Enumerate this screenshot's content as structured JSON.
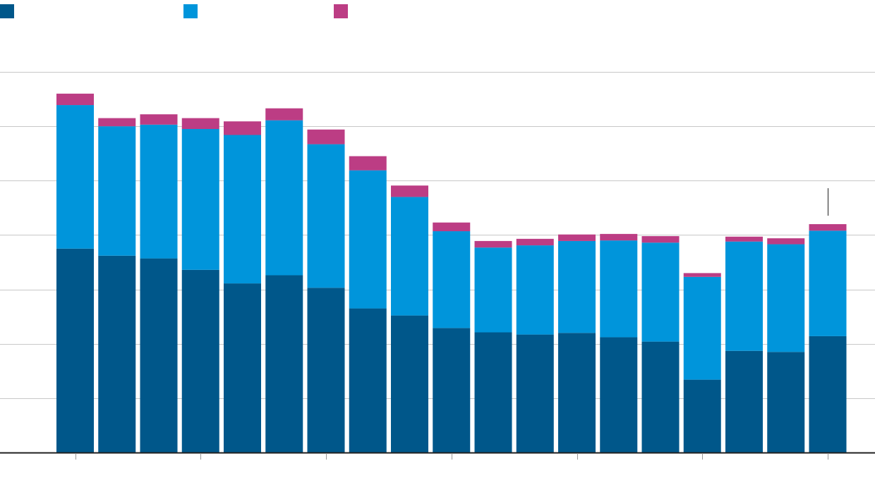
{
  "chart_data": {
    "type": "bar",
    "stacked": true,
    "title": "",
    "xlabel": "",
    "ylabel": "",
    "categories": [
      "",
      "",
      "",
      "",
      "",
      "",
      "",
      "",
      "",
      "",
      "",
      "",
      "",
      "",
      "",
      "",
      "",
      "",
      ""
    ],
    "series": [
      {
        "color": "#00578a",
        "values": [
          375,
          362,
          357,
          336,
          311,
          326,
          303,
          265,
          252,
          229,
          221,
          217,
          220,
          212,
          204,
          134,
          187,
          185,
          214
        ]
      },
      {
        "color": "#0095db",
        "values": [
          264,
          238,
          246,
          259,
          273,
          285,
          264,
          254,
          218,
          178,
          156,
          164,
          169,
          178,
          182,
          189,
          201,
          198,
          194
        ]
      },
      {
        "color": "#bc3d84",
        "values": [
          21,
          15,
          19,
          20,
          25,
          22,
          27,
          26,
          21,
          16,
          12,
          12,
          12,
          12,
          12,
          7,
          9,
          11,
          12
        ]
      }
    ],
    "ylim": [
      0,
      700
    ],
    "y_gridlines": [
      0,
      100,
      200,
      300,
      400,
      500,
      600,
      700
    ],
    "x_ticks_every": 3,
    "annotation_marker_on_bar": 18,
    "grid": true,
    "legend": "top-left"
  }
}
